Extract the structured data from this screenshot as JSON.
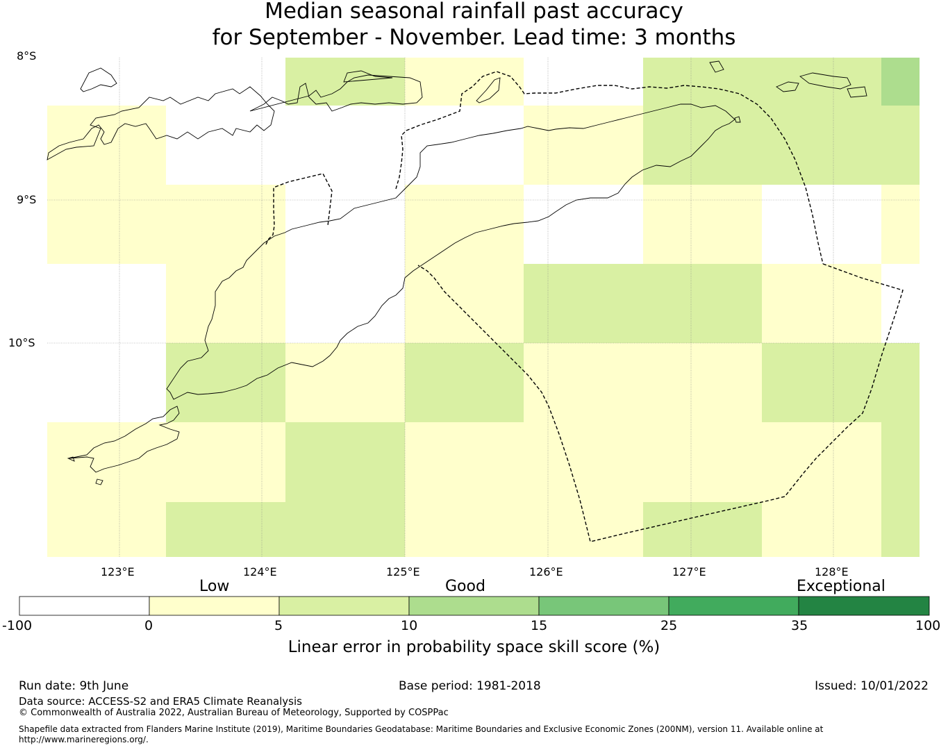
{
  "title": {
    "line1": "Median seasonal rainfall past accuracy",
    "line2": "for September - November. Lead time: 3 months"
  },
  "map": {
    "lat_labels": [
      "8°S",
      "9°S",
      "10°S"
    ],
    "lon_labels": [
      "123°E",
      "124°E",
      "125°E",
      "126°E",
      "127°E",
      "128°E"
    ],
    "lon_range": [
      122.5,
      128.6
    ],
    "lat_range": [
      -8.0,
      -11.5
    ],
    "cell_size_deg": 0.833,
    "grid_origin": {
      "lon": 122.5,
      "lat": -8.0
    },
    "skill_grid": [
      [
        "white",
        "white",
        "light",
        "yellow",
        "white",
        "light",
        "light",
        "medium"
      ],
      [
        "yellow",
        "white",
        "white",
        "white",
        "yellow",
        "light",
        "light",
        "light"
      ],
      [
        "yellow",
        "yellow",
        "white",
        "yellow",
        "white",
        "yellow",
        "white",
        "yellow"
      ],
      [
        "white",
        "yellow",
        "white",
        "yellow",
        "light",
        "light",
        "yellow",
        "white"
      ],
      [
        "white",
        "light",
        "yellow",
        "light",
        "yellow",
        "yellow",
        "light",
        "light"
      ],
      [
        "yellow",
        "yellow",
        "light",
        "yellow",
        "yellow",
        "yellow",
        "yellow",
        "light"
      ],
      [
        "yellow",
        "light",
        "light",
        "yellow",
        "yellow",
        "light",
        "yellow",
        "light"
      ]
    ]
  },
  "colorbar": {
    "categories": [
      "Low",
      "Good",
      "Exceptional"
    ],
    "ticks": [
      "-100",
      "0",
      "5",
      "10",
      "15",
      "25",
      "35",
      "100"
    ],
    "colors": [
      "#ffffff",
      "#ffffcc",
      "#d9f0a3",
      "#addd8e",
      "#78c679",
      "#41ab5d",
      "#238443"
    ],
    "label": "Linear error in probability space skill score (%)"
  },
  "legend_colors": {
    "white": "#ffffff",
    "yellow": "#ffffcc",
    "light": "#d9f0a3",
    "medium": "#addd8e"
  },
  "footer": {
    "run_date": "Run date: 9th June",
    "base_period": "Base period: 1981-2018",
    "issued": "Issued: 10/01/2022",
    "data_source": "Data source: ACCESS-S2 and ERA5 Climate Reanalysis",
    "copyright": "© Commonwealth of Australia 2022, Australian Bureau of Meteorology, Supported by COSPPac",
    "shapefile_line1": "Shapefile data extracted from Flanders Marine Institute (2019), Maritime Boundaries Geodatabase: Maritime Boundaries and Exclusive Economic Zones (200NM), version 11. Available online at",
    "shapefile_line2": "http://www.marineregions.org/."
  }
}
